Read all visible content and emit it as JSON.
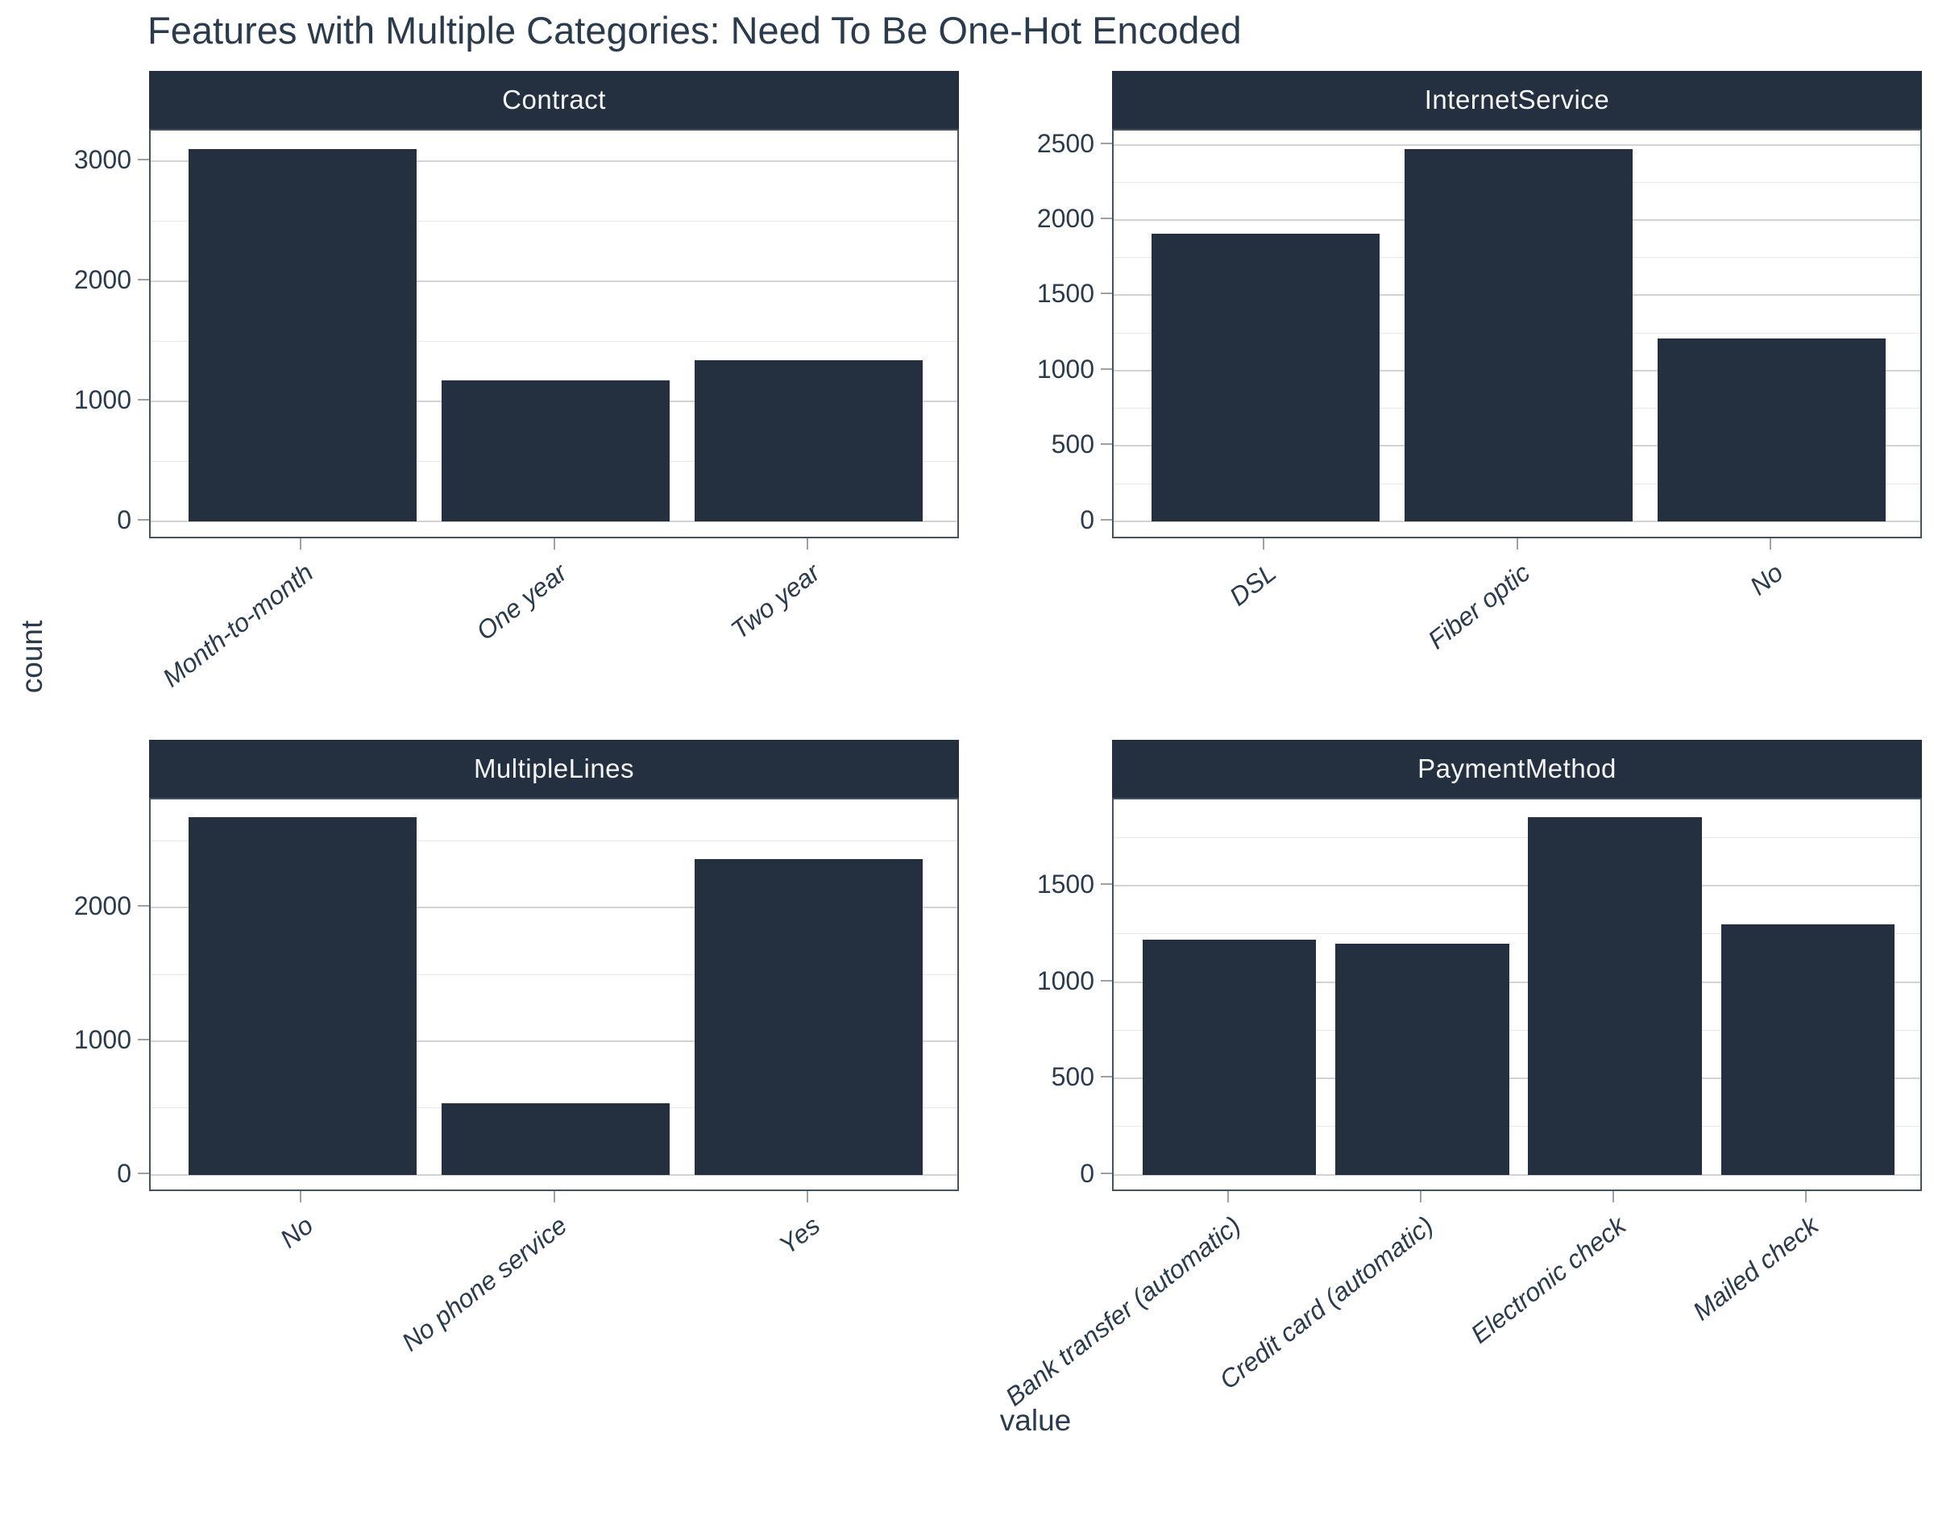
{
  "chart_data": {
    "type": "bar",
    "title": "Features with Multiple Categories: Need To Be One-Hot Encoded",
    "xlabel": "value",
    "ylabel": "count",
    "grid": true,
    "legend_position": "none",
    "facet_layout": "2x2 grid, free y scales",
    "facets": [
      {
        "title": "Contract",
        "categories": [
          "Month-to-month",
          "One year",
          "Two year"
        ],
        "values": [
          3100,
          1175,
          1340
        ],
        "y_major_ticks": [
          0,
          1000,
          2000,
          3000
        ],
        "y_minor_ticks": [
          500,
          1500,
          2500
        ],
        "ylim": [
          -155,
          3255
        ]
      },
      {
        "title": "InternetService",
        "categories": [
          "DSL",
          "Fiber optic",
          "No"
        ],
        "values": [
          1910,
          2470,
          1215
        ],
        "y_major_ticks": [
          0,
          500,
          1000,
          1500,
          2000,
          2500
        ],
        "y_minor_ticks": [
          250,
          750,
          1250,
          1750,
          2250
        ],
        "ylim": [
          -124,
          2594
        ]
      },
      {
        "title": "MultipleLines",
        "categories": [
          "No",
          "No phone service",
          "Yes"
        ],
        "values": [
          2675,
          535,
          2360
        ],
        "y_major_ticks": [
          0,
          1000,
          2000
        ],
        "y_minor_ticks": [
          500,
          1500,
          2500
        ],
        "ylim": [
          -134,
          2809
        ]
      },
      {
        "title": "PaymentMethod",
        "categories": [
          "Bank transfer (automatic)",
          "Credit card (automatic)",
          "Electronic check",
          "Mailed check"
        ],
        "values": [
          1220,
          1200,
          1855,
          1300
        ],
        "y_major_ticks": [
          0,
          500,
          1000,
          1500
        ],
        "y_minor_ticks": [
          250,
          750,
          1250,
          1750
        ],
        "ylim": [
          -93,
          1948
        ]
      }
    ],
    "colors": {
      "bar_fill": "#24303f",
      "strip_bg": "#24303f",
      "strip_text": "#f4f5f6",
      "text": "#2b3b4e",
      "grid_major": "#d3d3d3",
      "grid_minor": "#e8e8e8",
      "panel_border": "#46525e",
      "tick_mark": "#9aa1a9"
    }
  }
}
